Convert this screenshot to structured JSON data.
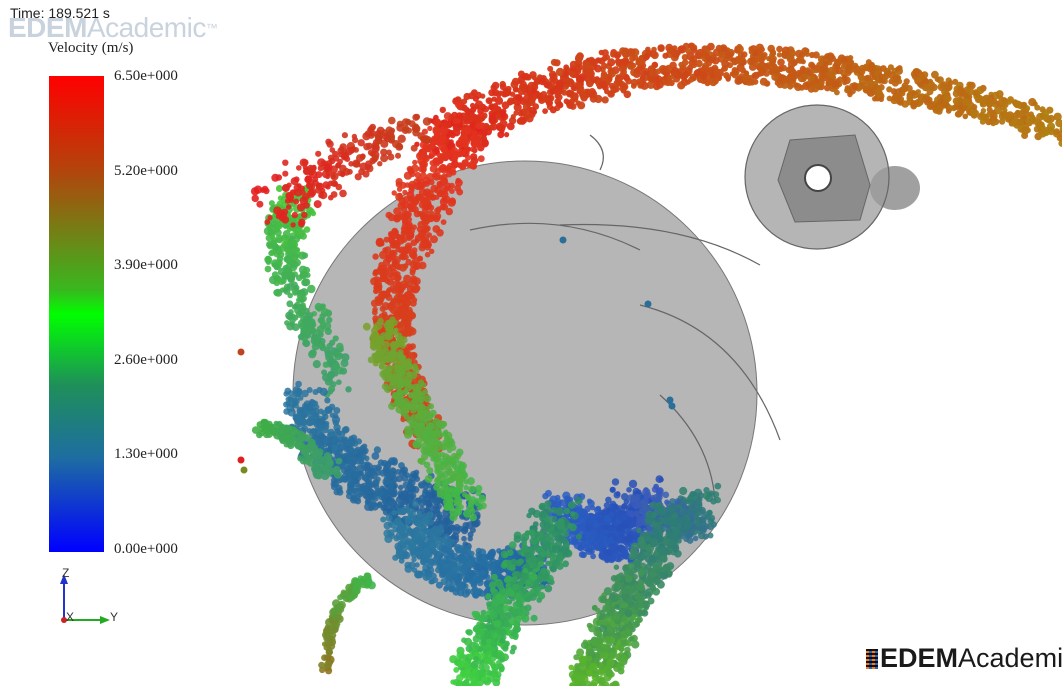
{
  "time": {
    "label": "Time: 189.521 s"
  },
  "watermark": {
    "bold": "EDEM",
    "light": "Academic",
    "tm": "™"
  },
  "legend": {
    "title": "Velocity (m/s)",
    "ticks": [
      "6.50e+000",
      "5.20e+000",
      "3.90e+000",
      "2.60e+000",
      "1.30e+000",
      "0.00e+000"
    ],
    "colors": {
      "max": "#ff0000",
      "mid": "#00ff00",
      "min": "#0000ff"
    }
  },
  "triad": {
    "z": "Z",
    "x": "X",
    "y": "Y"
  }
}
